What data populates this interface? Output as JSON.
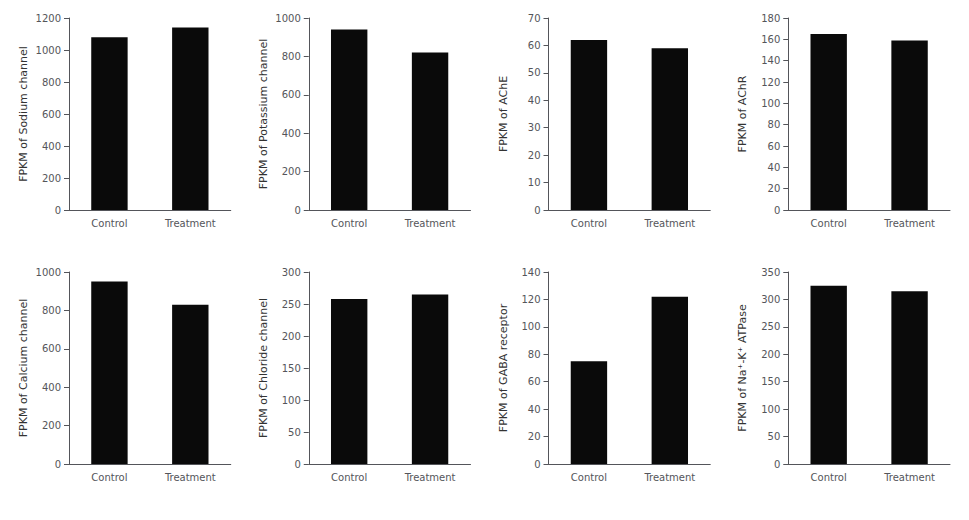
{
  "chart_data": [
    {
      "type": "bar",
      "ylabel": "FPKM of Sodium channel",
      "categories": [
        "Control",
        "Treatment"
      ],
      "values": [
        1080,
        1140
      ],
      "color": "#0a0a0a",
      "ylim": [
        0,
        1200
      ],
      "yticks": [
        0,
        200,
        400,
        600,
        800,
        1000,
        1200
      ],
      "grid": false
    },
    {
      "type": "bar",
      "ylabel": "FPKM of Potassium channel",
      "categories": [
        "Control",
        "Treatment"
      ],
      "values": [
        940,
        820
      ],
      "color": "#0a0a0a",
      "ylim": [
        0,
        1000
      ],
      "yticks": [
        0,
        200,
        400,
        600,
        800,
        1000
      ],
      "grid": false
    },
    {
      "type": "bar",
      "ylabel": "FPKM of AChE",
      "categories": [
        "Control",
        "Treatment"
      ],
      "values": [
        62,
        59
      ],
      "color": "#0a0a0a",
      "ylim": [
        0,
        70
      ],
      "yticks": [
        0,
        10,
        20,
        30,
        40,
        50,
        60,
        70
      ],
      "grid": false
    },
    {
      "type": "bar",
      "ylabel": "FPKM of AChR",
      "categories": [
        "Control",
        "Treatment"
      ],
      "values": [
        165,
        159
      ],
      "color": "#0a0a0a",
      "ylim": [
        0,
        180
      ],
      "yticks": [
        0,
        20,
        40,
        60,
        80,
        100,
        120,
        140,
        160,
        180
      ],
      "grid": false
    },
    {
      "type": "bar",
      "ylabel": "FPKM of Calcium channel",
      "categories": [
        "Control",
        "Treatment"
      ],
      "values": [
        950,
        830
      ],
      "color": "#0a0a0a",
      "ylim": [
        0,
        1000
      ],
      "yticks": [
        0,
        200,
        400,
        600,
        800,
        1000
      ],
      "grid": false
    },
    {
      "type": "bar",
      "ylabel": "FPKM of Chloride channel",
      "categories": [
        "Control",
        "Treatment"
      ],
      "values": [
        258,
        265
      ],
      "color": "#0a0a0a",
      "ylim": [
        0,
        300
      ],
      "yticks": [
        0,
        50,
        100,
        150,
        200,
        250,
        300
      ],
      "grid": false
    },
    {
      "type": "bar",
      "ylabel": "FPKM of GABA receptor",
      "categories": [
        "Control",
        "Treatment"
      ],
      "values": [
        75,
        122
      ],
      "color": "#0a0a0a",
      "ylim": [
        0,
        140
      ],
      "yticks": [
        0,
        20,
        40,
        60,
        80,
        100,
        120,
        140
      ],
      "grid": false
    },
    {
      "type": "bar",
      "ylabel": "FPKM of Na⁺-K⁺ ATPase",
      "categories": [
        "Control",
        "Treatment"
      ],
      "values": [
        325,
        315
      ],
      "color": "#0a0a0a",
      "ylim": [
        0,
        350
      ],
      "yticks": [
        0,
        50,
        100,
        150,
        200,
        250,
        300,
        350
      ],
      "grid": false
    }
  ]
}
